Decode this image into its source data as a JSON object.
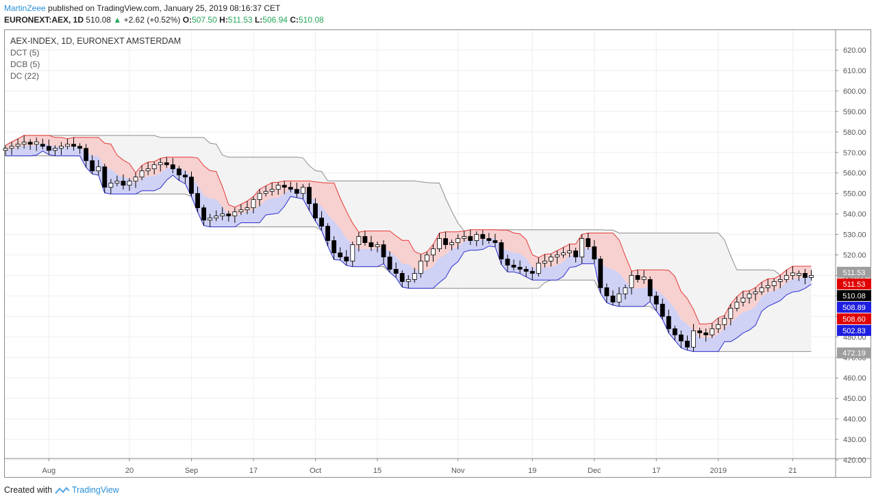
{
  "header": {
    "author": "MartinZeee",
    "published": "published on TradingView.com, January 25, 2019 08:16:37 CET",
    "symbol": "EURONEXT:AEX, 1D",
    "last": "510.08",
    "arrow": "▲",
    "change": "+2.62 (+0.52%)",
    "o_label": "O:",
    "o_value": "507.50",
    "h_label": "H:",
    "h_value": "511.53",
    "l_label": "L:",
    "l_value": "506.94",
    "c_label": "C:",
    "c_value": "510.08"
  },
  "legend": {
    "title": "AEX-INDEX, 1D, EURONEXT AMSTERDAM",
    "dct": "DCT (5)",
    "dcb": "DCB (5)",
    "dc": "DC (22)"
  },
  "footer": {
    "created_with": "Created with",
    "brand": "TradingView"
  },
  "colors": {
    "upper_band": "#e53935",
    "upper_fill": "#f7c9c9",
    "lower_band": "#2f2fd1",
    "lower_fill": "#c8caf5",
    "dc22": "#8c8c8c",
    "dc22_fill": "#f3f3f3",
    "candle_up": "#ffffff",
    "candle_down": "#000000",
    "grid": "#eeeeee",
    "axis_text": "#555555"
  },
  "chart_data": {
    "type": "candlestick",
    "symbol": "EURONEXT:AEX",
    "interval": "1D",
    "ylim": [
      420,
      620
    ],
    "y_ticks": [
      "620.00",
      "610.00",
      "600.00",
      "590.00",
      "580.00",
      "570.00",
      "560.00",
      "550.00",
      "540.00",
      "530.00",
      "520.00",
      "510.00",
      "500.00",
      "490.00",
      "480.00",
      "470.00",
      "460.00",
      "450.00",
      "440.00",
      "430.00",
      "420.00"
    ],
    "x_ticks": [
      {
        "label": "Aug",
        "bar": 7
      },
      {
        "label": "20",
        "bar": 20
      },
      {
        "label": "Sep",
        "bar": 30
      },
      {
        "label": "17",
        "bar": 40
      },
      {
        "label": "Oct",
        "bar": 50
      },
      {
        "label": "15",
        "bar": 60
      },
      {
        "label": "Nov",
        "bar": 73
      },
      {
        "label": "19",
        "bar": 85
      },
      {
        "label": "Dec",
        "bar": 95
      },
      {
        "label": "17",
        "bar": 105
      },
      {
        "label": "2019",
        "bar": 115
      },
      {
        "label": "21",
        "bar": 127
      }
    ],
    "price_labels": [
      {
        "text": "511.53",
        "value": 511.53,
        "color": "#9e9e9e"
      },
      {
        "text": "511.53",
        "value": 511.53,
        "color": "#e00000"
      },
      {
        "text": "510.08",
        "value": 510.08,
        "color": "#000000"
      },
      {
        "text": "508.89",
        "value": 508.89,
        "color": "#1e1ee0"
      },
      {
        "text": "508.60",
        "value": 508.6,
        "color": "#e00000"
      },
      {
        "text": "502.83",
        "value": 502.83,
        "color": "#1e1ee0"
      },
      {
        "text": "472.19",
        "value": 472.19,
        "color": "#9e9e9e"
      }
    ],
    "closes": [
      572,
      573,
      574,
      575,
      574,
      574,
      573,
      571,
      572,
      573,
      574,
      573,
      572,
      566,
      561,
      563,
      553,
      555,
      556,
      554,
      556,
      558,
      561,
      562,
      564,
      565,
      564,
      562,
      559,
      558,
      550,
      543,
      537,
      538,
      539,
      540,
      539,
      541,
      542,
      543,
      547,
      550,
      551,
      552,
      554,
      553,
      552,
      550,
      553,
      545,
      538,
      534,
      527,
      521,
      519,
      517,
      525,
      529,
      526,
      524,
      525,
      519,
      513,
      511,
      507,
      508,
      511,
      517,
      520,
      523,
      528,
      525,
      526,
      528,
      529,
      527,
      530,
      528,
      527,
      526,
      518,
      515,
      514,
      513,
      512,
      511,
      516,
      517,
      519,
      520,
      521,
      522,
      519,
      528,
      524,
      518,
      504,
      500,
      497,
      501,
      504,
      510,
      508,
      508,
      500,
      496,
      490,
      484,
      481,
      478,
      475,
      483,
      482,
      481,
      484,
      486,
      489,
      494,
      497,
      499,
      501,
      502,
      504,
      505,
      507,
      508,
      510,
      510,
      511,
      509,
      510
    ],
    "last": 510.08,
    "indicators": [
      "DCT (5)",
      "DCB (5)",
      "DC (22)"
    ]
  }
}
